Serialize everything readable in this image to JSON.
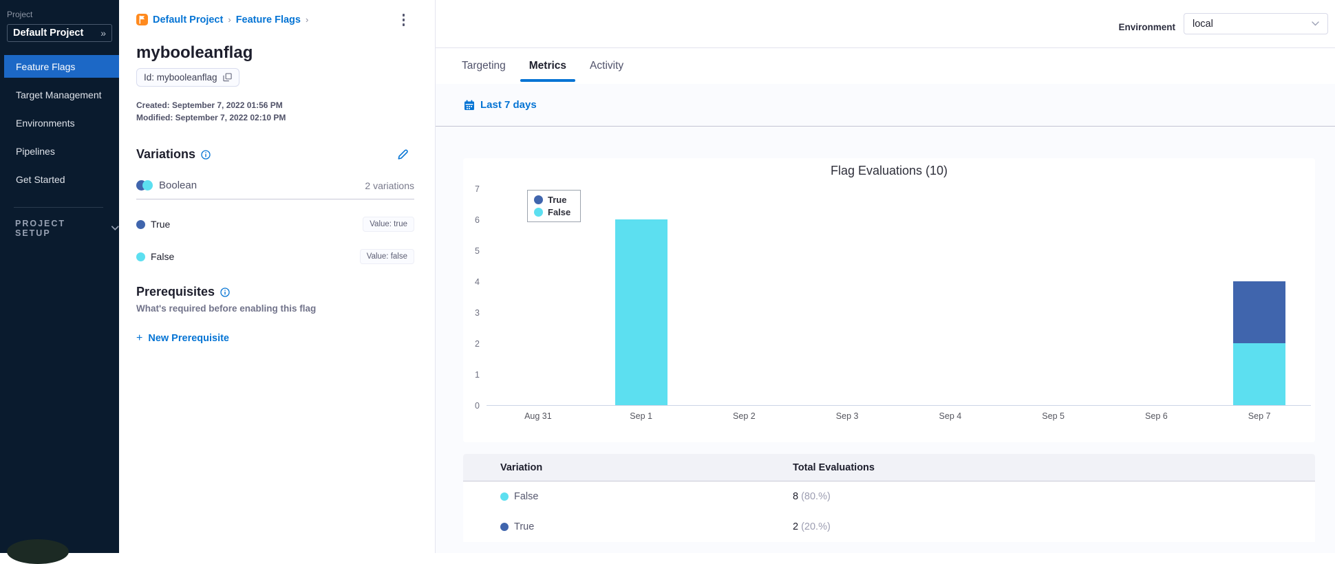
{
  "colors": {
    "accent_blue": "#0574D4",
    "true_blue": "#4065AD",
    "false_cyan": "#5CDFF0"
  },
  "sidebar": {
    "project_label": "Project",
    "project_selector": "Default Project",
    "nav": [
      {
        "label": "Feature Flags",
        "active": true
      },
      {
        "label": "Target Management",
        "active": false
      },
      {
        "label": "Environments",
        "active": false
      },
      {
        "label": "Pipelines",
        "active": false
      },
      {
        "label": "Get Started",
        "active": false
      }
    ],
    "section_label": "PROJECT SETUP"
  },
  "flag_panel": {
    "breadcrumb": [
      "Default Project",
      "Feature Flags"
    ],
    "title": "mybooleanflag",
    "id_chip": "Id: mybooleanflag",
    "created": "Created: September 7, 2022 01:56 PM",
    "modified": "Modified: September 7, 2022 02:10 PM",
    "variations": {
      "heading": "Variations",
      "type_label": "Boolean",
      "count_label": "2 variations",
      "items": [
        {
          "name": "True",
          "value_label": "Value: true",
          "color": "#4065AD"
        },
        {
          "name": "False",
          "value_label": "Value: false",
          "color": "#5CDFF0"
        }
      ]
    },
    "prerequisites": {
      "heading": "Prerequisites",
      "subtitle": "What's required before enabling this flag",
      "new_button": "New Prerequisite"
    }
  },
  "header": {
    "environment_label": "Environment",
    "environment_value": "local"
  },
  "tabs": [
    {
      "label": "Targeting",
      "active": false
    },
    {
      "label": "Metrics",
      "active": true
    },
    {
      "label": "Activity",
      "active": false
    }
  ],
  "toolbar": {
    "date_range": "Last 7 days"
  },
  "chart_data": {
    "type": "bar",
    "stacked": true,
    "title": "Flag Evaluations (10)",
    "categories": [
      "Aug 31",
      "Sep 1",
      "Sep 2",
      "Sep 3",
      "Sep 4",
      "Sep 5",
      "Sep 6",
      "Sep 7"
    ],
    "series": [
      {
        "name": "True",
        "color": "#4065AD",
        "values": [
          0,
          0,
          0,
          0,
          0,
          0,
          0,
          2
        ]
      },
      {
        "name": "False",
        "color": "#5CDFF0",
        "values": [
          0,
          6,
          0,
          0,
          0,
          0,
          0,
          2
        ]
      }
    ],
    "ylim": [
      0,
      7
    ],
    "yticks": [
      0,
      1,
      2,
      3,
      4,
      5,
      6,
      7
    ],
    "xlabel": "",
    "ylabel": "",
    "grid": false,
    "legend_position": "top-left"
  },
  "table": {
    "columns": [
      "Variation",
      "Total Evaluations"
    ],
    "rows": [
      {
        "variation": "False",
        "dot_color": "#5CDFF0",
        "total": "8",
        "percent": "(80.%)"
      },
      {
        "variation": "True",
        "dot_color": "#4065AD",
        "total": "2",
        "percent": "(20.%)"
      }
    ]
  }
}
